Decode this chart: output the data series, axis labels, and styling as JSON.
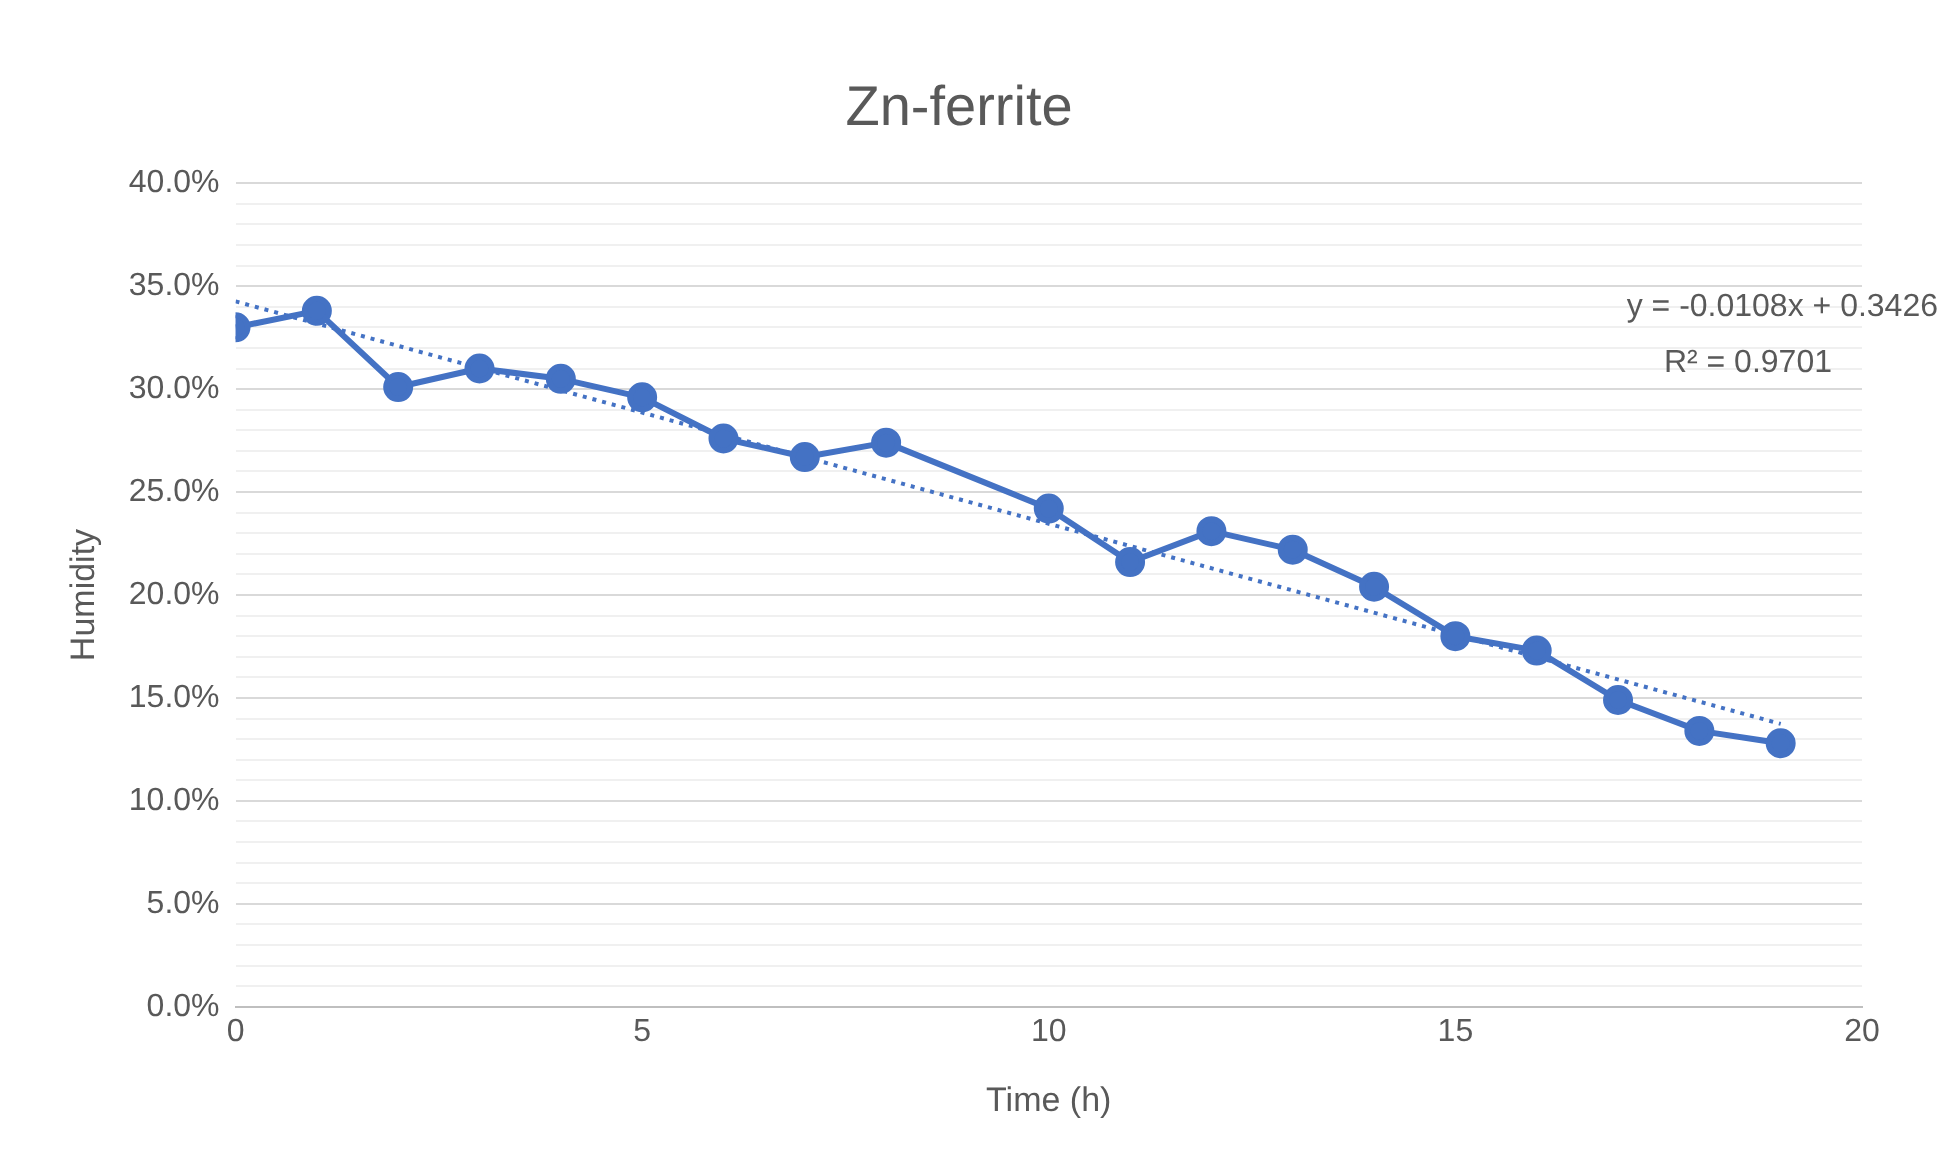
{
  "chart_data": {
    "type": "line",
    "title": "Zn-ferrite",
    "xlabel": "Time (h)",
    "ylabel": "Humidity",
    "x": [
      0,
      1,
      2,
      3,
      4,
      5,
      6,
      7,
      8,
      10,
      11,
      12,
      13,
      14,
      15,
      16,
      17,
      18,
      19
    ],
    "series": [
      {
        "color": "#4472c4",
        "values": [
          0.33,
          0.338,
          0.301,
          0.31,
          0.305,
          0.296,
          0.276,
          0.267,
          0.274,
          0.242,
          0.216,
          0.231,
          0.222,
          0.204,
          0.18,
          0.173,
          0.149,
          0.134,
          0.128
        ],
        "marker": "circle",
        "line_style": "solid"
      },
      {
        "type": "line",
        "color": "#4472c4",
        "x": [
          0,
          19
        ],
        "values": [
          0.3426,
          0.1374
        ],
        "marker": "none",
        "line_style": "dotted"
      }
    ],
    "annotations": [
      "y = -0.0108x + 0.3426",
      "R² = 0.9701"
    ],
    "xlim": [
      0,
      20
    ],
    "xticks": [
      0,
      5,
      10,
      15,
      20
    ],
    "ylim": [
      0,
      0.4
    ],
    "yticks": [
      {
        "value": 0,
        "label": "0.0%"
      },
      {
        "value": 0.01,
        "label": null
      },
      {
        "value": 0.02,
        "label": null
      },
      {
        "value": 0.03,
        "label": null
      },
      {
        "value": 0.04,
        "label": null
      },
      {
        "value": 0.05,
        "label": "5.0%"
      },
      {
        "value": 0.06,
        "label": null
      },
      {
        "value": 0.07,
        "label": null
      },
      {
        "value": 0.08,
        "label": null
      },
      {
        "value": 0.09,
        "label": null
      },
      {
        "value": 0.1,
        "label": "10.0%"
      },
      {
        "value": 0.11,
        "label": null
      },
      {
        "value": 0.12,
        "label": null
      },
      {
        "value": 0.13,
        "label": null
      },
      {
        "value": 0.14,
        "label": null
      },
      {
        "value": 0.15,
        "label": "15.0%"
      },
      {
        "value": 0.16,
        "label": null
      },
      {
        "value": 0.17,
        "label": null
      },
      {
        "value": 0.18,
        "label": null
      },
      {
        "value": 0.19,
        "label": null
      },
      {
        "value": 0.2,
        "label": "20.0%"
      },
      {
        "value": 0.21,
        "label": null
      },
      {
        "value": 0.22,
        "label": null
      },
      {
        "value": 0.23,
        "label": null
      },
      {
        "value": 0.24,
        "label": null
      },
      {
        "value": 0.25,
        "label": "25.0%"
      },
      {
        "value": 0.26,
        "label": null
      },
      {
        "value": 0.27,
        "label": null
      },
      {
        "value": 0.28,
        "label": null
      },
      {
        "value": 0.29,
        "label": null
      },
      {
        "value": 0.3,
        "label": "30.0%"
      },
      {
        "value": 0.31,
        "label": null
      },
      {
        "value": 0.32,
        "label": null
      },
      {
        "value": 0.33,
        "label": null
      },
      {
        "value": 0.34,
        "label": null
      },
      {
        "value": 0.35,
        "label": "35.0%"
      },
      {
        "value": 0.36,
        "label": null
      },
      {
        "value": 0.37,
        "label": null
      },
      {
        "value": 0.38,
        "label": null
      },
      {
        "value": 0.39,
        "label": null
      },
      {
        "value": 0.4,
        "label": "40.0%"
      }
    ],
    "grid": "y",
    "legend": false
  }
}
